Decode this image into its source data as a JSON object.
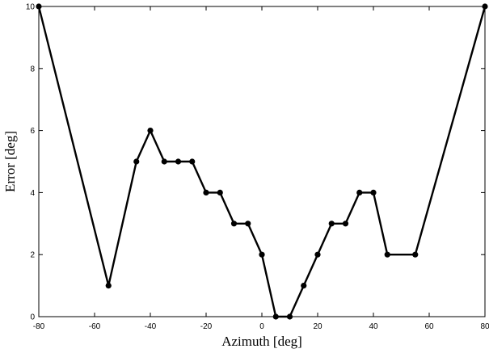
{
  "chart_data": {
    "type": "line",
    "title": "",
    "xlabel": "Azimuth [deg]",
    "ylabel": "Error [deg]",
    "xlim": [
      -80,
      80
    ],
    "ylim": [
      0,
      10
    ],
    "x_ticks": [
      "-80",
      "-60",
      "-40",
      "-20",
      "0",
      "20",
      "40",
      "60",
      "80"
    ],
    "y_ticks": [
      "0",
      "2",
      "4",
      "6",
      "8",
      "10"
    ],
    "grid": false,
    "legend": "none",
    "series": [
      {
        "x": [
          -80,
          -55,
          -45,
          -40,
          -35,
          -30,
          -25,
          -20,
          -15,
          -10,
          -5,
          0,
          5,
          10,
          15,
          20,
          25,
          30,
          35,
          40,
          45,
          55,
          80
        ],
        "y": [
          10,
          1,
          5,
          6,
          5,
          5,
          5,
          4,
          4,
          3,
          3,
          2,
          0,
          0,
          1,
          2,
          3,
          3,
          4,
          4,
          2,
          2,
          10
        ],
        "color": "#000000",
        "marker": "circle"
      }
    ]
  }
}
